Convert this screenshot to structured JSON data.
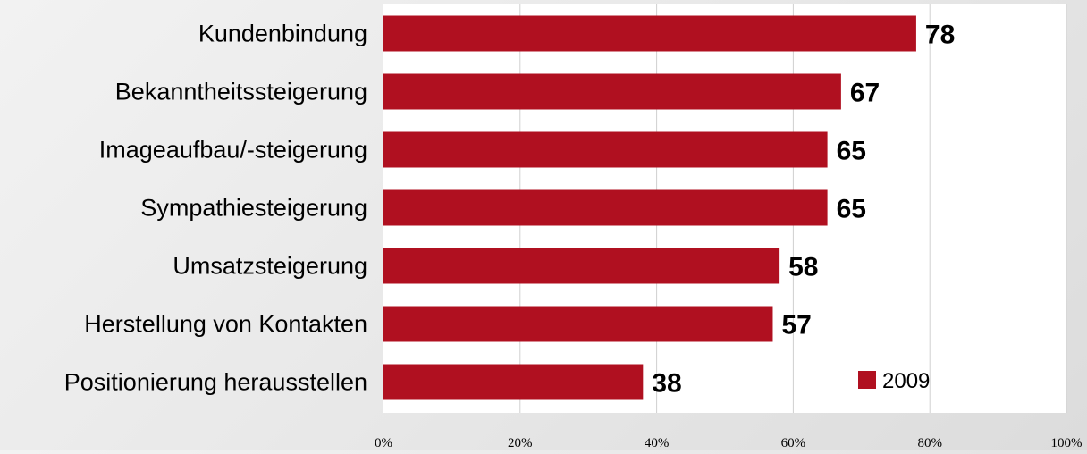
{
  "chart_data": {
    "type": "bar",
    "orientation": "horizontal",
    "categories": [
      "Kundenbindung",
      "Bekanntheitssteigerung",
      "Imageaufbau/-steigerung",
      "Sympathiesteigerung",
      "Umsatzsteigerung",
      "Herstellung von Kontakten",
      "Positionierung herausstellen"
    ],
    "series": [
      {
        "name": "2009",
        "values": [
          78,
          67,
          65,
          65,
          58,
          57,
          38
        ],
        "color": "#b01020"
      }
    ],
    "data_labels": [
      "78",
      "67",
      "65",
      "65",
      "58",
      "57",
      "38"
    ],
    "x_ticks": [
      "0%",
      "20%",
      "40%",
      "60%",
      "80%",
      "100%"
    ],
    "xlim": [
      0,
      100
    ],
    "grid": true,
    "legend_position": "bottom-right-inside",
    "title": "",
    "xlabel": "",
    "ylabel": ""
  },
  "colors": {
    "bar": "#b01020",
    "plot_background": "#ffffff",
    "gridline": "#d0d0d0",
    "label_text": "#000000"
  }
}
